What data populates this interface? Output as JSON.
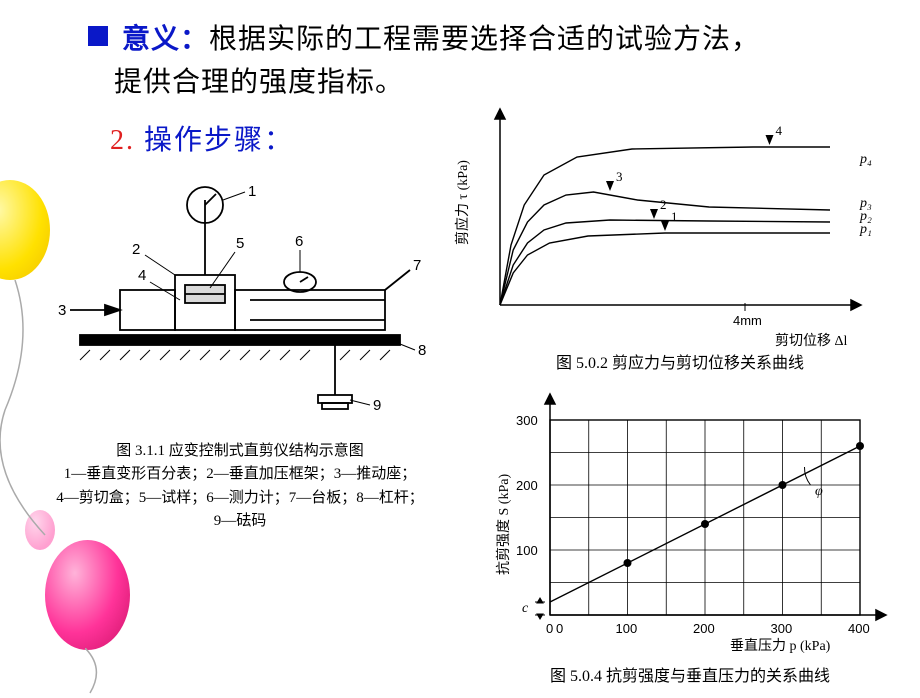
{
  "title": {
    "bullet_color": "#0a18c8",
    "lead": "意义：",
    "rest_line1": "根据实际的工程需要选择合适的试验方法，",
    "rest_line2": "提供合理的强度指标。"
  },
  "section_heading": {
    "number": "2.",
    "text": "操作步骤：",
    "number_color": "#e02020",
    "text_color": "#0a18c8"
  },
  "apparatus": {
    "caption_title": "图 3.1.1  应变控制式直剪仪结构示意图",
    "legend_line1": "1—垂直变形百分表；2—垂直加压框架；3—推动座；",
    "legend_line2": "4—剪切盒；5—试样；6—测力计；7—台板；8—杠杆；",
    "legend_line3": "9—砝码",
    "label_numbers": [
      "1",
      "2",
      "3",
      "4",
      "5",
      "6",
      "7",
      "8",
      "9"
    ]
  },
  "chart_shear_disp": {
    "caption": "图 5.0.2  剪应力与剪切位移关系曲线",
    "x_axis": "剪切位移 Δl",
    "y_axis": "剪应力 τ (kPa)",
    "x_marker": "4mm",
    "series_labels": [
      "p₁",
      "p₂",
      "p₃",
      "p₄"
    ],
    "curve_labels": [
      "1",
      "2",
      "3",
      "4"
    ],
    "curves": {
      "p1": [
        [
          0,
          0
        ],
        [
          12,
          32
        ],
        [
          25,
          50
        ],
        [
          45,
          62
        ],
        [
          80,
          69
        ],
        [
          150,
          72
        ],
        [
          300,
          72
        ]
      ],
      "p2": [
        [
          0,
          0
        ],
        [
          12,
          40
        ],
        [
          25,
          62
        ],
        [
          40,
          75
        ],
        [
          60,
          82
        ],
        [
          100,
          85
        ],
        [
          190,
          84
        ],
        [
          300,
          83
        ]
      ],
      "p3": [
        [
          0,
          0
        ],
        [
          12,
          55
        ],
        [
          25,
          83
        ],
        [
          40,
          100
        ],
        [
          60,
          110
        ],
        [
          85,
          113
        ],
        [
          125,
          105
        ],
        [
          190,
          98
        ],
        [
          300,
          95
        ]
      ],
      "p4": [
        [
          0,
          0
        ],
        [
          10,
          60
        ],
        [
          22,
          100
        ],
        [
          40,
          130
        ],
        [
          70,
          148
        ],
        [
          120,
          156
        ],
        [
          230,
          158
        ],
        [
          300,
          158
        ]
      ]
    },
    "colors": {
      "axis": "#000000",
      "curve": "#000000"
    }
  },
  "chart_strength_pressure": {
    "caption": "图 5.0.4  抗剪强度与垂直压力的关系曲线",
    "x_axis": "垂直压力 p (kPa)",
    "y_axis": "抗剪强度 S (kPa)",
    "x_ticks": [
      0,
      100,
      200,
      300,
      400
    ],
    "y_ticks": [
      0,
      100,
      200,
      300
    ],
    "points": [
      [
        100,
        80
      ],
      [
        200,
        140
      ],
      [
        300,
        200
      ],
      [
        400,
        260
      ]
    ],
    "intercept_c": 20,
    "phi_label": "φ",
    "c_label": "c",
    "colors": {
      "grid": "#000000",
      "line": "#000000",
      "point": "#000000"
    }
  },
  "decor": {
    "balloon_yellow": "#ffe100",
    "balloon_red": "#ff3399",
    "balloon_pink": "#ffa0d0"
  }
}
